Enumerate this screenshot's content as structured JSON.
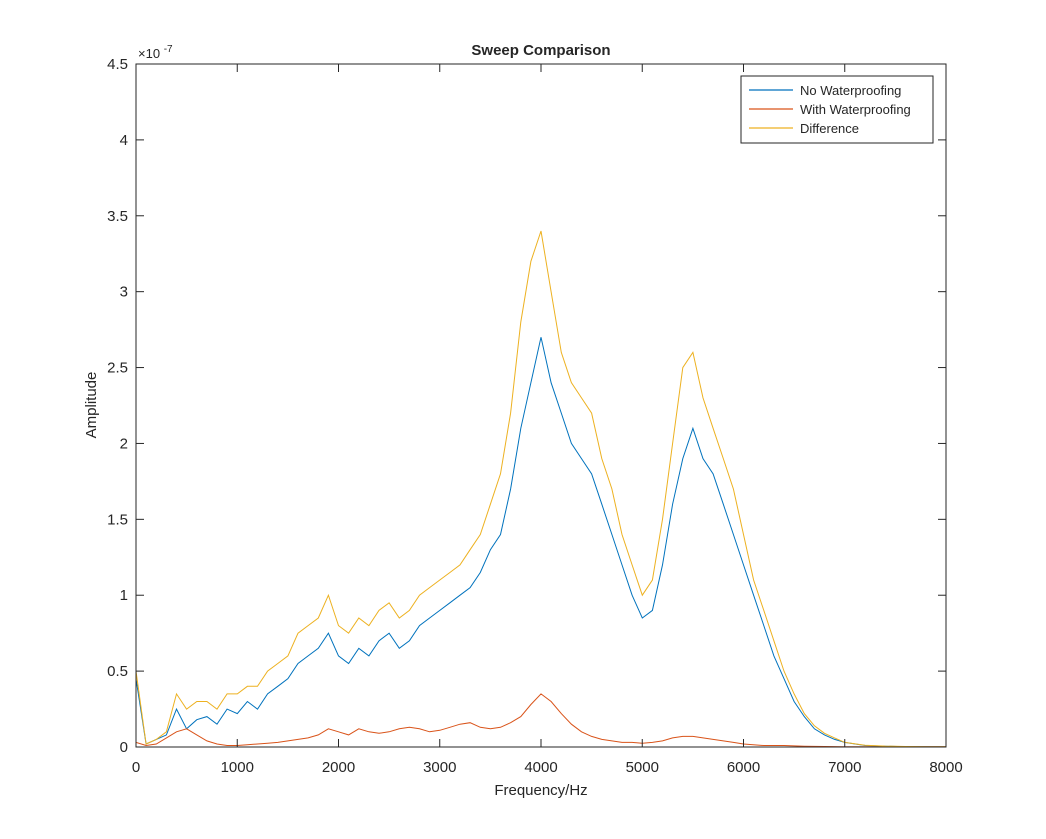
{
  "chart_data": {
    "type": "line",
    "title": "Sweep Comparison",
    "xlabel": "Frequency/Hz",
    "ylabel": "Amplitude",
    "xlim": [
      0,
      8000
    ],
    "ylim": [
      0,
      4.5e-07
    ],
    "y_exponent_label": "×10",
    "y_exponent_power": "-7",
    "x_ticks": [
      0,
      1000,
      2000,
      3000,
      4000,
      5000,
      6000,
      7000,
      8000
    ],
    "x_tick_labels": [
      "0",
      "1000",
      "2000",
      "3000",
      "4000",
      "5000",
      "6000",
      "7000",
      "8000"
    ],
    "y_ticks": [
      0,
      0.5,
      1,
      1.5,
      2,
      2.5,
      3,
      3.5,
      4,
      4.5
    ],
    "y_tick_labels": [
      "0",
      "0.5",
      "1",
      "1.5",
      "2",
      "2.5",
      "3",
      "3.5",
      "4",
      "4.5"
    ],
    "y_tick_unit": "1e-7",
    "grid": false,
    "legend_position": "top-right",
    "series": [
      {
        "name": "No Waterproofing",
        "color": "#0072BD",
        "x": [
          0,
          100,
          200,
          300,
          400,
          500,
          600,
          700,
          800,
          900,
          1000,
          1100,
          1200,
          1300,
          1400,
          1500,
          1600,
          1700,
          1800,
          1900,
          2000,
          2100,
          2200,
          2300,
          2400,
          2500,
          2600,
          2700,
          2800,
          2900,
          3000,
          3100,
          3200,
          3300,
          3400,
          3500,
          3600,
          3700,
          3800,
          3900,
          4000,
          4100,
          4200,
          4300,
          4400,
          4500,
          4600,
          4700,
          4800,
          4900,
          5000,
          5100,
          5200,
          5300,
          5400,
          5500,
          5600,
          5700,
          5800,
          5900,
          6000,
          6100,
          6200,
          6300,
          6400,
          6500,
          6600,
          6700,
          6800,
          6900,
          7000,
          7200,
          7400,
          7600,
          7800,
          8000
        ],
        "y": [
          0.45,
          0.02,
          0.05,
          0.08,
          0.25,
          0.12,
          0.18,
          0.2,
          0.15,
          0.25,
          0.22,
          0.3,
          0.25,
          0.35,
          0.4,
          0.45,
          0.55,
          0.6,
          0.65,
          0.75,
          0.6,
          0.55,
          0.65,
          0.6,
          0.7,
          0.75,
          0.65,
          0.7,
          0.8,
          0.85,
          0.9,
          0.95,
          1.0,
          1.05,
          1.15,
          1.3,
          1.4,
          1.7,
          2.1,
          2.4,
          2.7,
          2.4,
          2.2,
          2.0,
          1.9,
          1.8,
          1.6,
          1.4,
          1.2,
          1.0,
          0.85,
          0.9,
          1.2,
          1.6,
          1.9,
          2.1,
          1.9,
          1.8,
          1.6,
          1.4,
          1.2,
          1.0,
          0.8,
          0.6,
          0.45,
          0.3,
          0.2,
          0.12,
          0.08,
          0.05,
          0.03,
          0.01,
          0.005,
          0.002,
          0.001,
          0.001
        ]
      },
      {
        "name": "With Waterproofing",
        "color": "#D95319",
        "x": [
          0,
          100,
          200,
          300,
          400,
          500,
          600,
          700,
          800,
          900,
          1000,
          1100,
          1200,
          1300,
          1400,
          1500,
          1600,
          1700,
          1800,
          1900,
          2000,
          2100,
          2200,
          2300,
          2400,
          2500,
          2600,
          2700,
          2800,
          2900,
          3000,
          3100,
          3200,
          3300,
          3400,
          3500,
          3600,
          3700,
          3800,
          3900,
          4000,
          4100,
          4200,
          4300,
          4400,
          4500,
          4600,
          4700,
          4800,
          4900,
          5000,
          5100,
          5200,
          5300,
          5400,
          5500,
          5600,
          5700,
          5800,
          5900,
          6000,
          6200,
          6400,
          6600,
          6800,
          7000,
          7500,
          8000
        ],
        "y": [
          0.03,
          0.01,
          0.02,
          0.06,
          0.1,
          0.12,
          0.08,
          0.04,
          0.02,
          0.01,
          0.01,
          0.015,
          0.02,
          0.025,
          0.03,
          0.04,
          0.05,
          0.06,
          0.08,
          0.12,
          0.1,
          0.08,
          0.12,
          0.1,
          0.09,
          0.1,
          0.12,
          0.13,
          0.12,
          0.1,
          0.11,
          0.13,
          0.15,
          0.16,
          0.13,
          0.12,
          0.13,
          0.16,
          0.2,
          0.28,
          0.35,
          0.3,
          0.22,
          0.15,
          0.1,
          0.07,
          0.05,
          0.04,
          0.03,
          0.03,
          0.025,
          0.03,
          0.04,
          0.06,
          0.07,
          0.07,
          0.06,
          0.05,
          0.04,
          0.03,
          0.02,
          0.01,
          0.01,
          0.005,
          0.003,
          0.002,
          0.001,
          0.001
        ]
      },
      {
        "name": "Difference",
        "color": "#EDB120",
        "x": [
          0,
          100,
          200,
          300,
          400,
          500,
          600,
          700,
          800,
          900,
          1000,
          1100,
          1200,
          1300,
          1400,
          1500,
          1600,
          1700,
          1800,
          1900,
          2000,
          2100,
          2200,
          2300,
          2400,
          2500,
          2600,
          2700,
          2800,
          2900,
          3000,
          3100,
          3200,
          3300,
          3400,
          3500,
          3600,
          3700,
          3800,
          3900,
          4000,
          4100,
          4200,
          4300,
          4400,
          4500,
          4600,
          4700,
          4800,
          4900,
          5000,
          5100,
          5200,
          5300,
          5400,
          5500,
          5600,
          5700,
          5800,
          5900,
          6000,
          6100,
          6200,
          6300,
          6400,
          6500,
          6600,
          6700,
          6800,
          6900,
          7000,
          7200,
          7400,
          7600,
          7800,
          8000
        ],
        "y": [
          0.5,
          0.02,
          0.05,
          0.1,
          0.35,
          0.25,
          0.3,
          0.3,
          0.25,
          0.35,
          0.35,
          0.4,
          0.4,
          0.5,
          0.55,
          0.6,
          0.75,
          0.8,
          0.85,
          1.0,
          0.8,
          0.75,
          0.85,
          0.8,
          0.9,
          0.95,
          0.85,
          0.9,
          1.0,
          1.05,
          1.1,
          1.15,
          1.2,
          1.3,
          1.4,
          1.6,
          1.8,
          2.2,
          2.8,
          3.2,
          3.4,
          3.0,
          2.6,
          2.4,
          2.3,
          2.2,
          1.9,
          1.7,
          1.4,
          1.2,
          1.0,
          1.1,
          1.5,
          2.0,
          2.5,
          2.6,
          2.3,
          2.1,
          1.9,
          1.7,
          1.4,
          1.1,
          0.9,
          0.7,
          0.5,
          0.35,
          0.22,
          0.14,
          0.09,
          0.06,
          0.03,
          0.012,
          0.006,
          0.003,
          0.001,
          0.001
        ]
      }
    ]
  }
}
